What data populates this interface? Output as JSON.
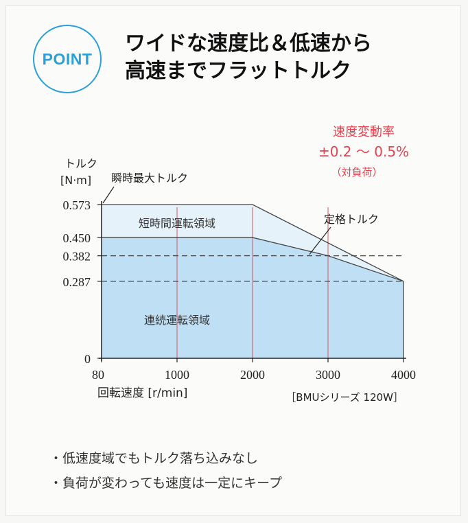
{
  "badge": {
    "label": "POINT"
  },
  "headline": {
    "line1": "ワイドな速度比＆低速から",
    "line2": "高速までフラットトルク"
  },
  "speed_variation": {
    "title": "速度変動率",
    "value": "±0.2 ～ 0.5%",
    "note": "（対負荷）"
  },
  "bullets": [
    "・低速度域でもトルク落ち込みなし",
    "・負荷が変わっても速度は一定にキープ"
  ],
  "colors": {
    "accent": "#2a9fd8",
    "red_text": "#e8424e",
    "continuous_fill": "#bfe0f4",
    "short_time_fill": "#e6f2fa"
  },
  "chart_data": {
    "type": "area",
    "ylabel_line1": "トルク",
    "ylabel_line2": "[N·m]",
    "xlabel": "回転速度 [r/min]",
    "model_label": "［BMUシリーズ 120W］",
    "x_ticks": [
      80,
      1000,
      2000,
      3000,
      4000
    ],
    "y_ticks": [
      0,
      0.287,
      0.382,
      0.45,
      0.573
    ],
    "y_tick_labels": [
      "0",
      "0.287",
      "0.382",
      "0.450",
      "0.573"
    ],
    "xlim": [
      0,
      4000
    ],
    "ylim": [
      0,
      0.573
    ],
    "series": [
      {
        "name": "短時間運転領域",
        "x": [
          0,
          2000,
          4000
        ],
        "y": [
          0.573,
          0.573,
          0.287
        ]
      },
      {
        "name": "連続運転領域",
        "x": [
          0,
          2000,
          3000,
          4000
        ],
        "y": [
          0.45,
          0.45,
          0.382,
          0.287
        ]
      }
    ],
    "annotations": [
      {
        "text": "瞬時最大トルク",
        "x": 0,
        "y": 0.573
      },
      {
        "text": "定格トルク",
        "x": 2700,
        "y": 0.382
      }
    ],
    "grid_x": [
      1000,
      2000,
      3000
    ],
    "dashed_y": [
      0.382,
      0.287
    ]
  }
}
